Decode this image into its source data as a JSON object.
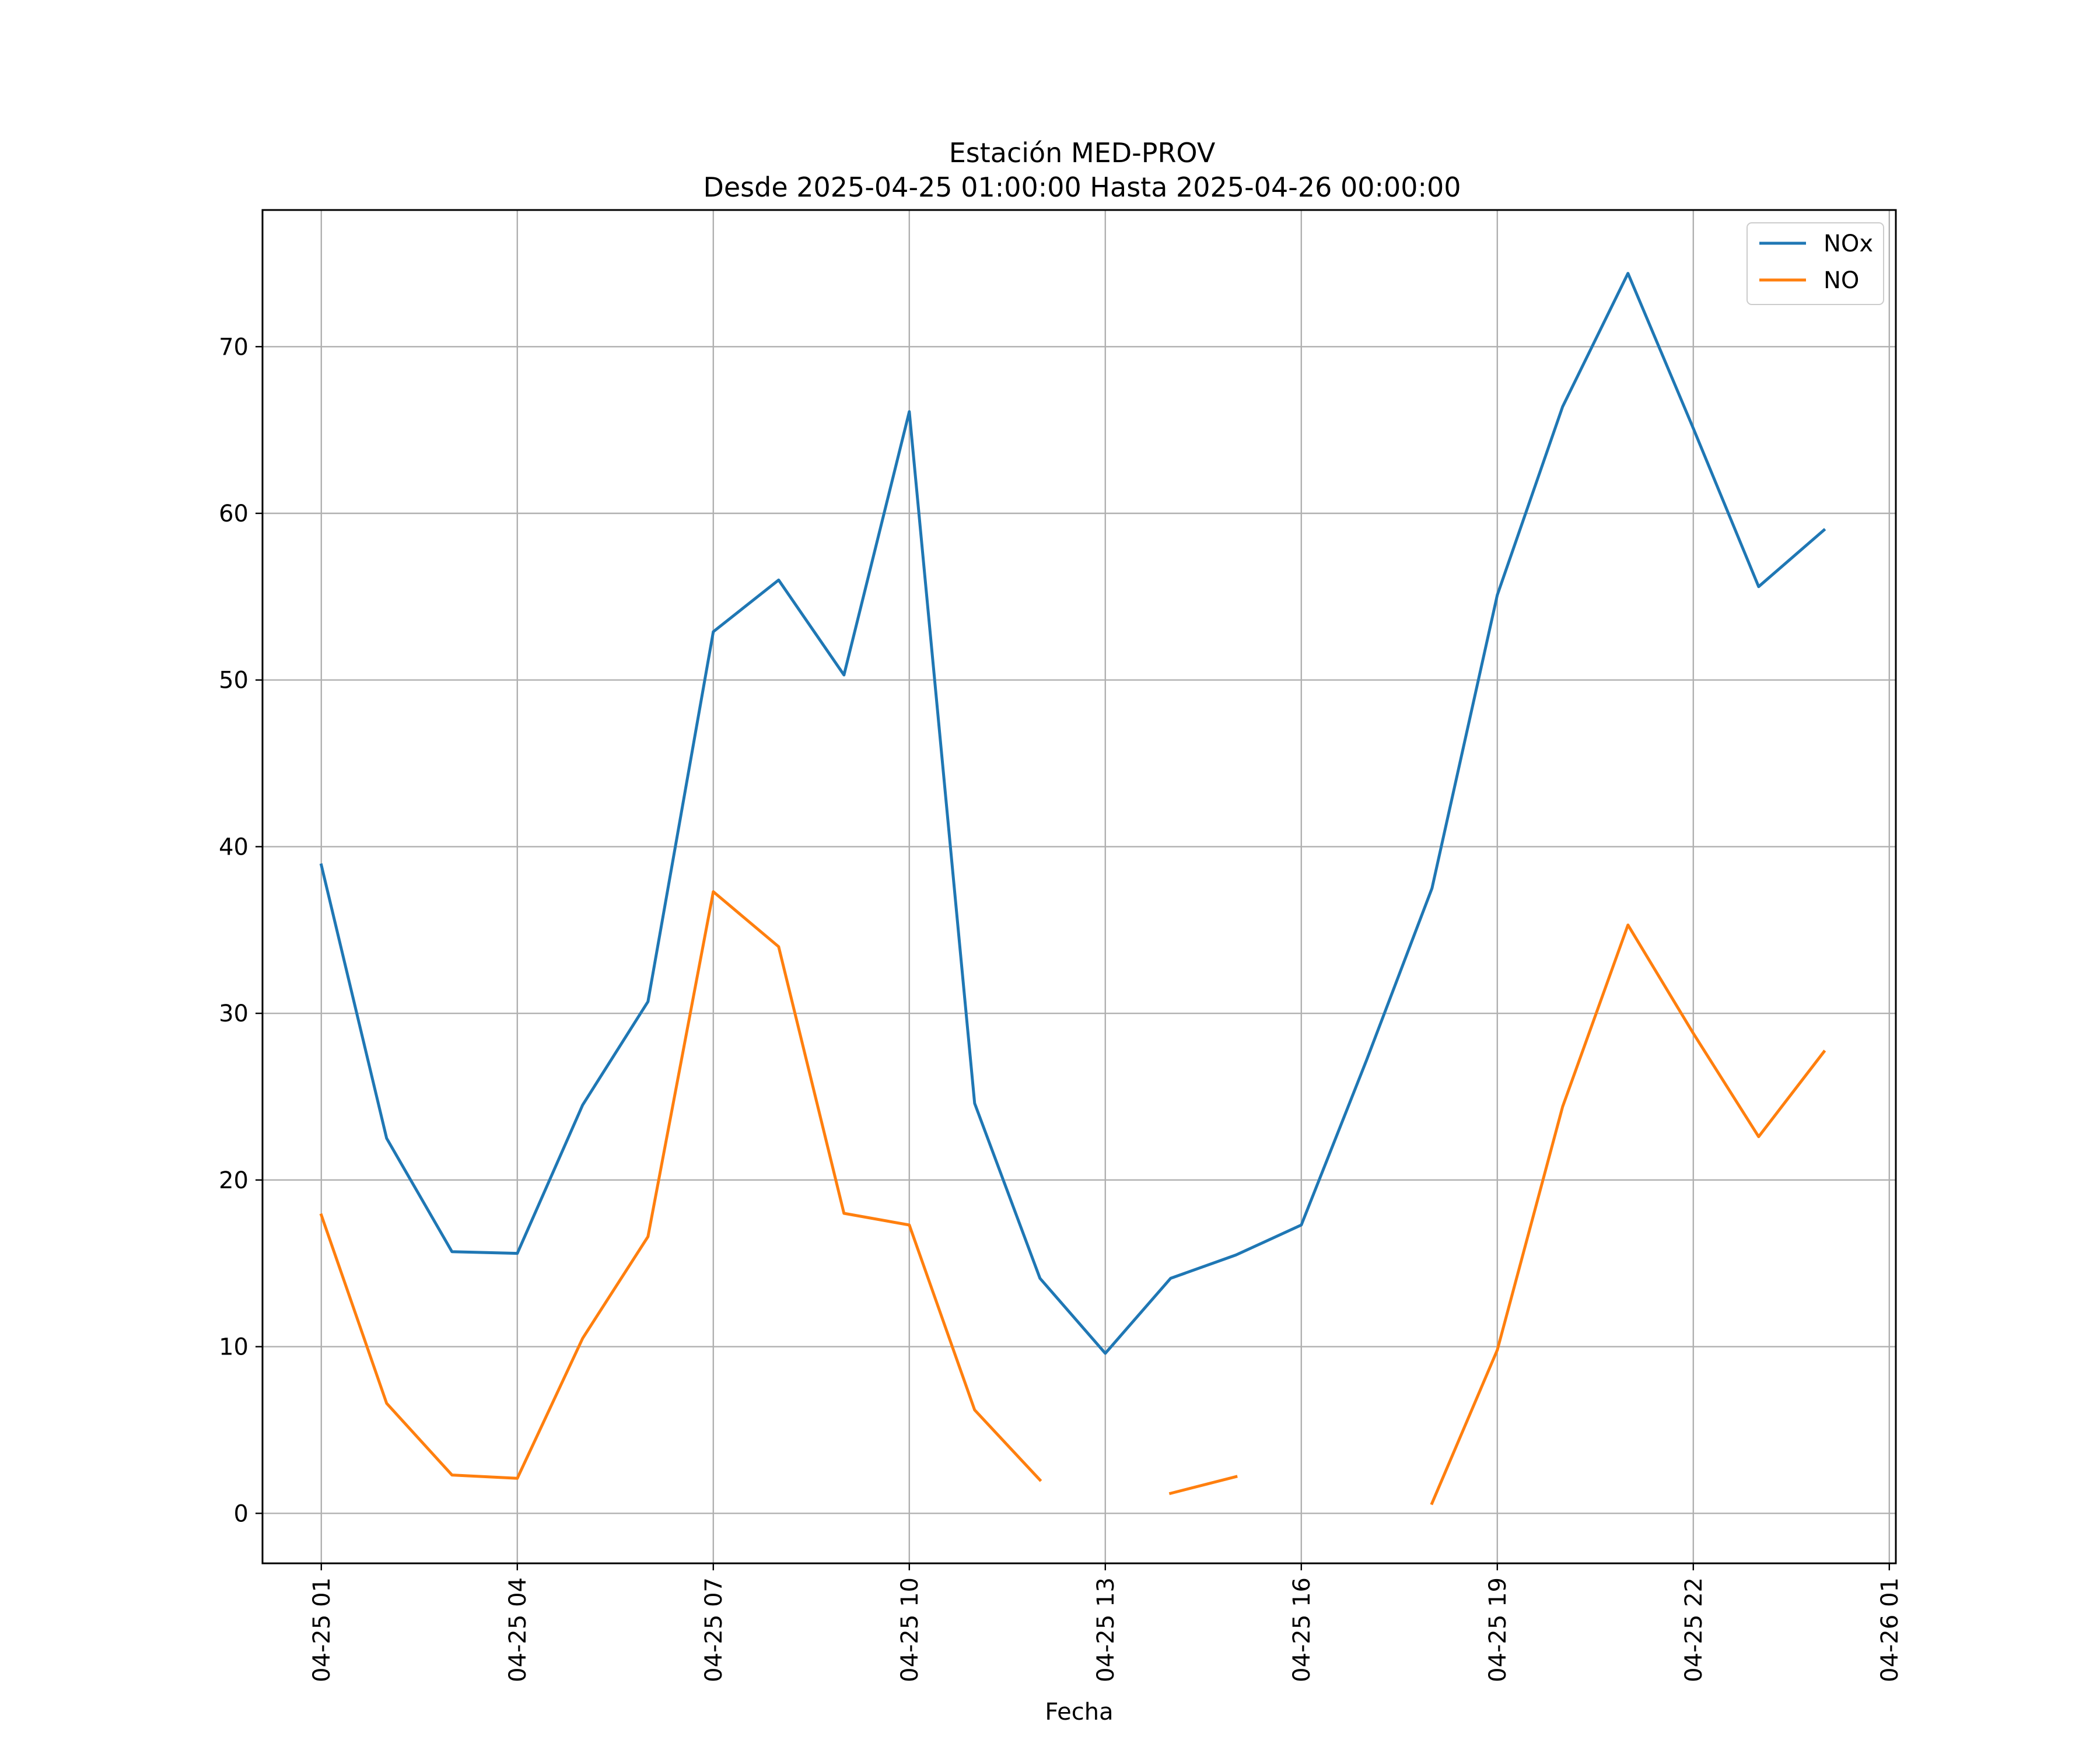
{
  "chart_data": {
    "type": "line",
    "title": "Estación MED-PROV",
    "subtitle": "Desde 2025-04-25 01:00:00 Hasta 2025-04-26 00:00:00",
    "xlabel": "Fecha",
    "ylabel": "",
    "x": [
      "2025-04-25 01:00",
      "2025-04-25 02:00",
      "2025-04-25 03:00",
      "2025-04-25 04:00",
      "2025-04-25 05:00",
      "2025-04-25 06:00",
      "2025-04-25 07:00",
      "2025-04-25 08:00",
      "2025-04-25 09:00",
      "2025-04-25 10:00",
      "2025-04-25 11:00",
      "2025-04-25 12:00",
      "2025-04-25 13:00",
      "2025-04-25 14:00",
      "2025-04-25 15:00",
      "2025-04-25 16:00",
      "2025-04-25 17:00",
      "2025-04-25 18:00",
      "2025-04-25 19:00",
      "2025-04-25 20:00",
      "2025-04-25 21:00",
      "2025-04-25 22:00",
      "2025-04-25 23:00",
      "2025-04-26 00:00"
    ],
    "xlim": [
      "2025-04-25 00:06",
      "2025-04-26 01:06"
    ],
    "ylim": [
      -3.0,
      78.2
    ],
    "xticks": [
      {
        "value": "2025-04-25 01:00",
        "label": "04-25 01"
      },
      {
        "value": "2025-04-25 04:00",
        "label": "04-25 04"
      },
      {
        "value": "2025-04-25 07:00",
        "label": "04-25 07"
      },
      {
        "value": "2025-04-25 10:00",
        "label": "04-25 10"
      },
      {
        "value": "2025-04-25 13:00",
        "label": "04-25 13"
      },
      {
        "value": "2025-04-25 16:00",
        "label": "04-25 16"
      },
      {
        "value": "2025-04-25 19:00",
        "label": "04-25 19"
      },
      {
        "value": "2025-04-25 22:00",
        "label": "04-25 22"
      },
      {
        "value": "2025-04-26 01:00",
        "label": "04-26 01"
      }
    ],
    "yticks": [
      0,
      10,
      20,
      30,
      40,
      50,
      60,
      70
    ],
    "grid": true,
    "legend_position": "top-right",
    "series": [
      {
        "name": "NOx",
        "color": "#1f77b4",
        "values": [
          38.9,
          22.5,
          15.7,
          15.6,
          24.5,
          30.7,
          52.9,
          56.0,
          50.3,
          66.1,
          24.6,
          14.1,
          9.6,
          14.1,
          15.5,
          17.3,
          27.2,
          37.5,
          55.1,
          66.4,
          74.4,
          65.1,
          55.6,
          59.0
        ]
      },
      {
        "name": "NO",
        "color": "#ff7f0e",
        "values": [
          17.9,
          6.6,
          2.3,
          2.1,
          10.5,
          16.6,
          37.3,
          34.0,
          18.0,
          17.3,
          6.2,
          2.0,
          null,
          1.2,
          2.2,
          null,
          null,
          0.6,
          9.8,
          24.4,
          35.3,
          28.8,
          22.6,
          27.7
        ]
      }
    ]
  }
}
